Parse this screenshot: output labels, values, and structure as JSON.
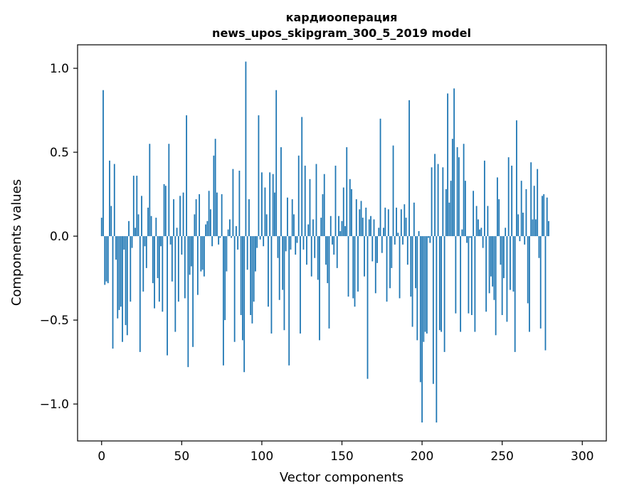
{
  "chart_data": {
    "type": "bar",
    "title_line1": "кардиооперация",
    "title_line2": "news_upos_skipgram_300_5_2019 model",
    "xlabel": "Vector components",
    "ylabel": "Components values",
    "xlim": [
      -15,
      315
    ],
    "ylim": [
      -1.22,
      1.14
    ],
    "x_ticks": [
      0,
      50,
      100,
      150,
      200,
      250,
      300
    ],
    "x_tick_labels": [
      "0",
      "50",
      "100",
      "150",
      "200",
      "250",
      "300"
    ],
    "y_ticks": [
      1.0,
      0.5,
      0.0,
      -0.5,
      -1.0
    ],
    "y_tick_labels": [
      "1.0",
      "0.5",
      "0.0",
      "−0.5",
      "−1.0"
    ],
    "grid": false,
    "bar_color": "#1f77b4",
    "values": [
      0.11,
      0.87,
      -0.29,
      -0.27,
      -0.28,
      0.45,
      0.18,
      -0.67,
      0.43,
      -0.14,
      -0.49,
      -0.44,
      -0.42,
      -0.63,
      -0.08,
      -0.53,
      -0.59,
      0.09,
      -0.39,
      -0.07,
      0.36,
      0.05,
      0.36,
      0.13,
      -0.69,
      0.24,
      -0.33,
      -0.06,
      -0.19,
      0.17,
      0.55,
      0.12,
      -0.28,
      -0.43,
      0.11,
      -0.25,
      -0.39,
      -0.06,
      -0.45,
      0.31,
      0.3,
      -0.71,
      0.55,
      -0.05,
      -0.27,
      0.22,
      -0.57,
      0.05,
      -0.39,
      0.24,
      -0.11,
      0.26,
      -0.37,
      0.72,
      -0.78,
      -0.23,
      -0.18,
      -0.66,
      0.13,
      0.22,
      -0.35,
      0.25,
      -0.21,
      -0.2,
      -0.24,
      0.07,
      0.09,
      0.27,
      0.16,
      -0.06,
      0.48,
      0.58,
      0.26,
      -0.05,
      -0.01,
      0.25,
      -0.77,
      -0.5,
      -0.21,
      0.04,
      0.1,
      -0.01,
      0.4,
      -0.63,
      0.06,
      -0.08,
      0.39,
      -0.47,
      -0.62,
      -0.81,
      1.04,
      -0.2,
      0.22,
      -0.47,
      -0.52,
      -0.39,
      -0.21,
      -0.07,
      0.72,
      -0.02,
      0.38,
      -0.06,
      0.29,
      0.13,
      -0.42,
      0.38,
      -0.58,
      0.37,
      0.26,
      0.87,
      -0.13,
      -0.38,
      0.53,
      -0.32,
      -0.56,
      -0.09,
      0.23,
      -0.77,
      -0.08,
      0.22,
      0.13,
      -0.11,
      -0.04,
      0.48,
      -0.58,
      0.71,
      -0.08,
      0.42,
      -0.17,
      0.07,
      0.34,
      -0.24,
      0.1,
      -0.13,
      0.43,
      -0.26,
      -0.62,
      0.11,
      0.25,
      0.37,
      -0.17,
      -0.28,
      -0.55,
      0.12,
      -0.05,
      -0.11,
      0.42,
      -0.19,
      0.12,
      0.03,
      0.09,
      0.29,
      0.06,
      0.53,
      -0.36,
      0.34,
      0.28,
      -0.37,
      -0.42,
      0.22,
      -0.33,
      0.16,
      0.21,
      0.11,
      -0.24,
      0.17,
      -0.85,
      0.1,
      0.12,
      -0.15,
      0.1,
      -0.34,
      -0.16,
      0.05,
      0.7,
      -0.1,
      0.05,
      0.17,
      -0.39,
      0.16,
      -0.31,
      -0.19,
      0.54,
      -0.05,
      0.17,
      0.02,
      -0.37,
      0.16,
      -0.05,
      0.19,
      0.11,
      -0.17,
      0.81,
      -0.36,
      -0.54,
      0.2,
      -0.31,
      -0.62,
      0.03,
      -0.87,
      -1.11,
      -0.63,
      -0.57,
      -0.58,
      -0.01,
      -0.04,
      0.41,
      -0.88,
      0.49,
      -1.11,
      0.43,
      -0.56,
      -0.57,
      0.41,
      -0.69,
      0.28,
      0.85,
      0.2,
      0.33,
      0.58,
      0.88,
      -0.46,
      0.53,
      0.47,
      -0.57,
      0.04,
      0.55,
      0.33,
      -0.04,
      -0.46,
      -0.01,
      -0.47,
      0.27,
      -0.57,
      0.18,
      0.1,
      0.04,
      0.05,
      -0.07,
      0.45,
      -0.45,
      0.18,
      -0.34,
      -0.24,
      -0.3,
      -0.38,
      -0.59,
      0.35,
      0.22,
      -0.17,
      -0.47,
      -0.25,
      0.05,
      -0.51,
      0.47,
      -0.32,
      0.42,
      -0.33,
      -0.69,
      0.69,
      0.13,
      -0.03,
      0.33,
      0.14,
      -0.05,
      0.28,
      -0.4,
      -0.57,
      0.44,
      0.1,
      0.3,
      0.1,
      0.4,
      -0.13,
      -0.55,
      0.24,
      0.25,
      -0.68,
      0.23,
      0.09
    ]
  }
}
